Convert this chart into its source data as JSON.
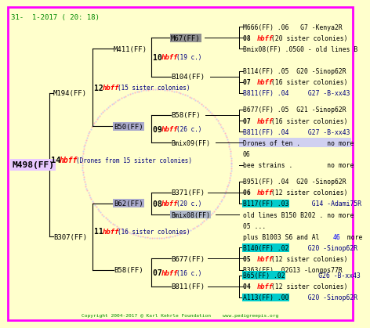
{
  "bg_color": "#FFFFCC",
  "border_color": "#FF00FF",
  "title_text": "31-  1-2017 ( 20: 18)",
  "footer_text": "Copyright 2004-2017 @ Karl Kehrle Foundation    www.pedigreepis.org",
  "nodes_gen1": [
    {
      "label": "M498(FF)",
      "col": 0,
      "row": 13.0,
      "hl": "#E8C8FF"
    }
  ],
  "nodes_gen2": [
    {
      "label": "M194(FF)",
      "col": 1,
      "row": 6.5
    },
    {
      "label": "B307(FF)",
      "col": 1,
      "row": 19.5
    }
  ],
  "nodes_gen3": [
    {
      "label": "M411(FF)",
      "col": 2,
      "row": 3.5
    },
    {
      "label": "B50(FF)",
      "col": 2,
      "row": 9.5,
      "hl": "#AAAACC"
    },
    {
      "label": "B62(FF)",
      "col": 2,
      "row": 16.5,
      "hl": "#AAAACC"
    },
    {
      "label": "B58(FF)",
      "col": 2,
      "row": 22.5
    }
  ],
  "nodes_gen4": [
    {
      "label": "M67(FF)",
      "col": 3,
      "row": 1.5,
      "hl": "#909090"
    },
    {
      "label": "B104(FF)",
      "col": 3,
      "row": 5.5
    },
    {
      "label": "B58(FF)",
      "col": 3,
      "row": 8.5
    },
    {
      "label": "Bmix09(FF)",
      "col": 3,
      "row": 10.5
    },
    {
      "label": "B371(FF)",
      "col": 3,
      "row": 15.5
    },
    {
      "label": "Bmix08(FF)",
      "col": 3,
      "row": 17.5,
      "hl": "#B0B8C8"
    },
    {
      "label": "B677(FF)",
      "col": 3,
      "row": 21.5
    },
    {
      "label": "B811(FF)",
      "col": 3,
      "row": 23.5
    }
  ],
  "label_gen1": {
    "num": "14",
    "text": "hbff",
    "rest": "(Drones from 15 sister colonies)",
    "col": 0.5,
    "row": 13.0
  },
  "label_gen2_top": {
    "num": "12",
    "text": "hbff",
    "rest": "(15 sister colonies)",
    "col": 1.5,
    "row": 6.5
  },
  "label_gen2_bot": {
    "num": "11",
    "text": "hbff",
    "rest": "(16 sister colonies)",
    "col": 1.5,
    "row": 19.5
  },
  "label_gen3_1": {
    "num": "10",
    "text": "hbff",
    "rest": "(19 c.)",
    "col": 2.5,
    "row": 3.5
  },
  "label_gen3_2": {
    "num": "09",
    "text": "hbff",
    "rest": "(26 c.)",
    "col": 2.5,
    "row": 9.5
  },
  "label_gen3_3": {
    "num": "08",
    "text": "hbff",
    "rest": "(20 c.)",
    "col": 2.5,
    "row": 16.5
  },
  "label_gen3_4": {
    "num": "07",
    "text": "hbff",
    "rest": "(16 c.)",
    "col": 2.5,
    "row": 22.5
  },
  "right_entries": [
    {
      "row": 0.5,
      "text": "M666(FF) .06",
      "color": "black",
      "hl": null,
      "suffix": "   G7 -Kenya2R",
      "suffix_color": "#000080"
    },
    {
      "row": 1.5,
      "text": "08 ",
      "color": "black",
      "bold": true,
      "hbff": true,
      "suffix": "(20 sister colonies)",
      "suffix_color": "black"
    },
    {
      "row": 2.5,
      "text": "Bmix08(FF) .05G0 - old lines B",
      "color": "black",
      "hl": null
    },
    {
      "row": 4.5,
      "text": "B114(FF) .05  G20 -Sinop62R",
      "color": "black",
      "hl": null
    },
    {
      "row": 5.5,
      "text": "07 ",
      "color": "black",
      "bold": true,
      "hbff": true,
      "suffix": "(16 sister colonies)",
      "suffix_color": "black"
    },
    {
      "row": 6.5,
      "text": "B811(FF) .04     G27 -B-xx43",
      "color": "#000080",
      "hl": null
    },
    {
      "row": 8.0,
      "text": "B677(FF) .05  G21 -Sinop62R",
      "color": "black",
      "hl": null
    },
    {
      "row": 9.0,
      "text": "07 ",
      "color": "black",
      "bold": true,
      "hbff": true,
      "suffix": "(16 sister colonies)",
      "suffix_color": "black"
    },
    {
      "row": 10.0,
      "text": "B811(FF) .04     G27 -B-xx43",
      "color": "#000080",
      "hl": null
    },
    {
      "row": 11.0,
      "text": "Drones of ten .       no more",
      "color": "black",
      "hl": "#D0D0F0"
    },
    {
      "row": 12.0,
      "text": "06",
      "color": "black",
      "hl": null
    },
    {
      "row": 13.0,
      "text": "bee strains .         no more",
      "color": "black",
      "hl": null
    },
    {
      "row": 14.5,
      "text": "B951(FF) .04  G20 -Sinop62R",
      "color": "black",
      "hl": null
    },
    {
      "row": 15.5,
      "text": "06 ",
      "color": "black",
      "bold": true,
      "hbff": true,
      "suffix": "(12 sister colonies)",
      "suffix_color": "black"
    },
    {
      "row": 16.5,
      "text": "B117(FF) .03",
      "color": "black",
      "hl": "#00CCCC",
      "suffix": "  G14 -Adami75R",
      "suffix_color": "#000080"
    },
    {
      "row": 17.5,
      "text": "old lines B150 B202 . no more",
      "color": "black",
      "hl": null
    },
    {
      "row": 18.5,
      "text": "05 ...",
      "color": "black",
      "hl": null
    },
    {
      "row": 19.5,
      "text": "plus B1003 S6 and Al46 more",
      "color": "black",
      "hl": null,
      "al46": true
    },
    {
      "row": 20.5,
      "text": "B140(FF) .02",
      "color": "black",
      "hl": "#00CCCC",
      "suffix": "  G20 -Sinop62R",
      "suffix_color": "#000080"
    },
    {
      "row": 21.5,
      "text": "05 ",
      "color": "black",
      "bold": true,
      "hbff": true,
      "suffix": "(12 sister colonies)",
      "suffix_color": "black"
    },
    {
      "row": 22.5,
      "text": "B363(FF) .02G13 -Longos77R",
      "color": "black",
      "hl": null
    },
    {
      "row": 23.0,
      "text": "B65(FF) .02",
      "color": "black",
      "hl": "#00CCCC",
      "suffix": "      G26 -B-xx43",
      "suffix_color": "#000080"
    },
    {
      "row": 24.0,
      "text": "04 ",
      "color": "black",
      "bold": true,
      "hbff": true,
      "suffix": "(12 sister colonies)",
      "suffix_color": "black"
    },
    {
      "row": 25.0,
      "text": "A113(FF) .00",
      "color": "black",
      "hl": "#00CCCC",
      "suffix": "  G20 -Sinop62R",
      "suffix_color": "#000080"
    }
  ]
}
